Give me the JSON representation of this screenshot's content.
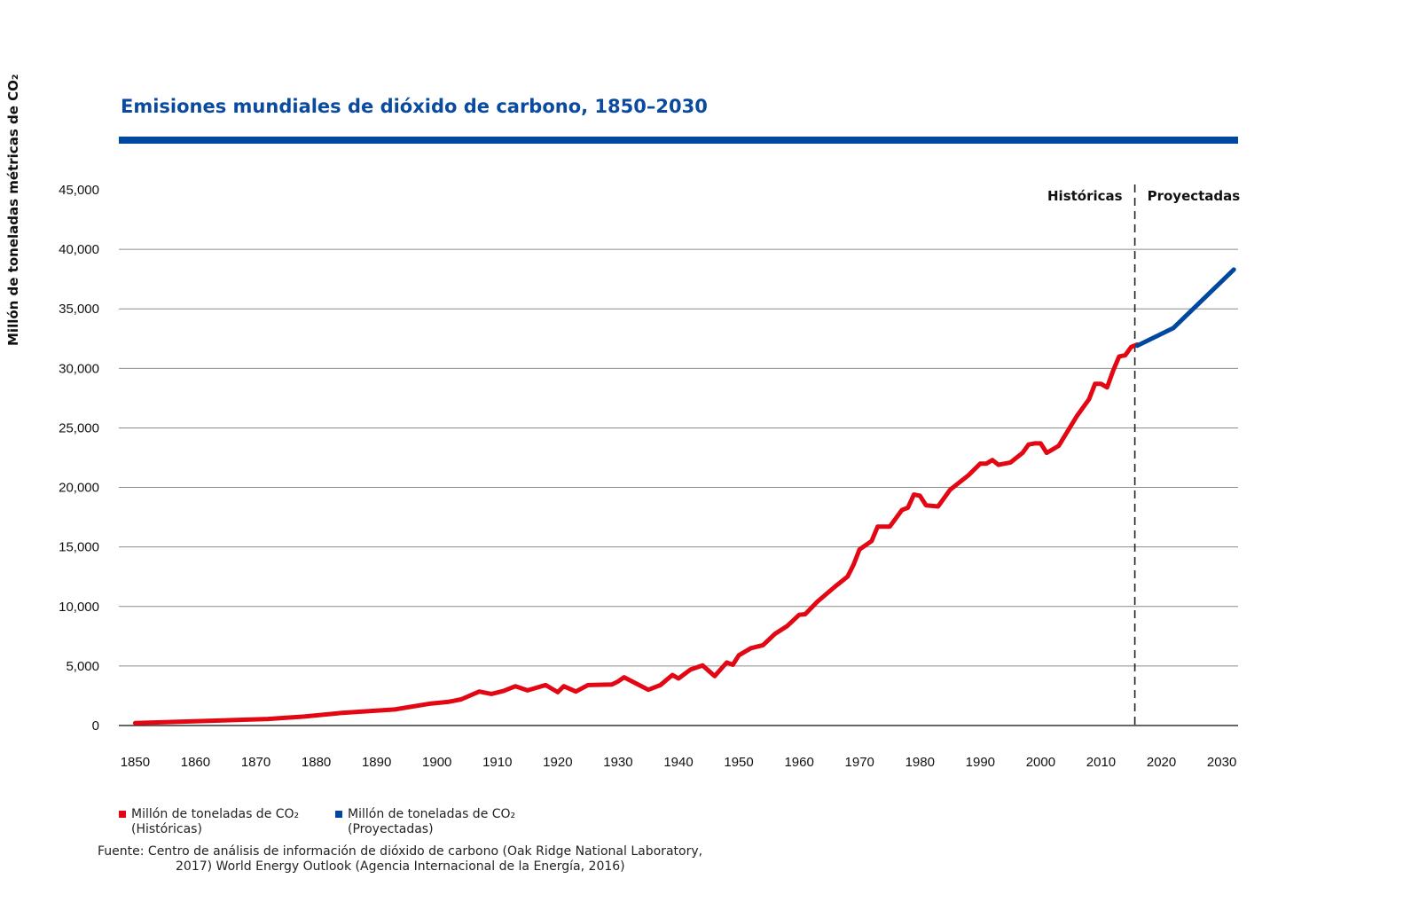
{
  "chart_data": {
    "type": "line",
    "title": "Emisiones mundiales de dióxido de carbono, 1850–2030",
    "ylabel": "Millón de toneladas métricas de CO₂",
    "xlabel": "",
    "xlim": [
      1847.3,
      2032.7
    ],
    "ylim": [
      0,
      45000
    ],
    "x_ticks": [
      "1850",
      "1860",
      "1870",
      "1880",
      "1890",
      "1900",
      "1910",
      "1920",
      "1930",
      "1940",
      "1950",
      "1960",
      "1970",
      "1980",
      "1990",
      "2000",
      "2010",
      "2020",
      "2030"
    ],
    "y_ticks": [
      "0",
      "5,000",
      "10,000",
      "15,000",
      "20,000",
      "25,000",
      "30,000",
      "35,000",
      "40,000",
      "45,000"
    ],
    "y_tick_values": [
      0,
      5000,
      10000,
      15000,
      20000,
      25000,
      30000,
      35000,
      40000,
      45000
    ],
    "grid": "horizontal",
    "divider": {
      "x": 2015.6,
      "left_label": "Históricas",
      "right_label": "Proyectadas"
    },
    "series": [
      {
        "name": "Millón de toneladas de CO₂ (Históricas)",
        "color": "#e30613",
        "x": [
          1850,
          1872,
          1878,
          1884,
          1893,
          1899,
          1902,
          1904,
          1907,
          1909,
          1911,
          1913,
          1915,
          1918,
          1920,
          1921,
          1923,
          1925,
          1929,
          1930,
          1931,
          1935,
          1937,
          1939,
          1940,
          1942,
          1944,
          1946,
          1948,
          1949,
          1950,
          1952,
          1954,
          1956,
          1958,
          1960,
          1961,
          1963,
          1966,
          1968,
          1969,
          1970,
          1972,
          1973,
          1975,
          1977,
          1978,
          1979,
          1980,
          1981,
          1983,
          1985,
          1988,
          1990,
          1991,
          1992,
          1993,
          1995,
          1997,
          1998,
          1999,
          2000,
          2001,
          2003,
          2006,
          2008,
          2009,
          2010,
          2011,
          2012,
          2013,
          2014,
          2015,
          2016
        ],
        "values": [
          200,
          550,
          750,
          1050,
          1350,
          1850,
          2000,
          2200,
          2850,
          2650,
          2900,
          3300,
          2950,
          3400,
          2800,
          3300,
          2850,
          3400,
          3450,
          3700,
          4050,
          3000,
          3400,
          4250,
          3950,
          4700,
          5050,
          4150,
          5300,
          5100,
          5900,
          6500,
          6750,
          7700,
          8350,
          9300,
          9350,
          10400,
          11700,
          12500,
          13500,
          14800,
          15500,
          16700,
          16700,
          18100,
          18300,
          19400,
          19300,
          18500,
          18400,
          19800,
          21000,
          22000,
          22000,
          22300,
          21900,
          22100,
          22900,
          23600,
          23700,
          23700,
          22900,
          23500,
          26000,
          27400,
          28700,
          28700,
          28400,
          29800,
          31000,
          31100,
          31800,
          32000
        ]
      },
      {
        "name": "Millón de toneladas de CO₂ (Proyectadas)",
        "color": "#0047a0",
        "x": [
          2016,
          2022,
          2032
        ],
        "values": [
          31900,
          33400,
          38300
        ]
      }
    ],
    "legend_placement": "bottom-left",
    "legend": [
      {
        "line1": "Millón de toneladas de CO₂",
        "line2": "(Históricas)",
        "color": "#e30613"
      },
      {
        "line1": "Millón de toneladas de CO₂",
        "line2": "(Proyectadas)",
        "color": "#0047a0"
      }
    ]
  },
  "colors": {
    "title": "#0a4a9f",
    "title_bar": "#0047a0",
    "grid": "#8c8c8c"
  },
  "source": {
    "line1": "Fuente: Centro de análisis de información de dióxido de carbono (Oak Ridge National Laboratory,",
    "line2": "2017) World Energy Outlook (Agencia Internacional de la Energía, 2016)"
  }
}
